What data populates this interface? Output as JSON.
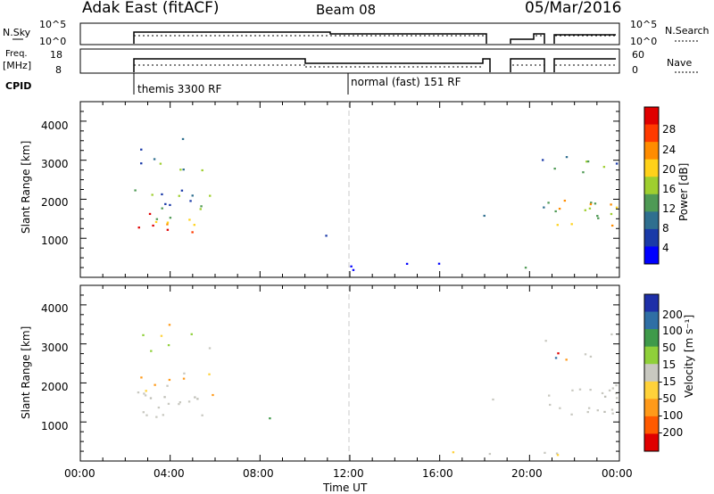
{
  "header": {
    "title": "Adak East (fitACF)",
    "beam": "Beam 08",
    "date": "05/Mar/2016"
  },
  "top_panels": {
    "nsky_label": "N.Sky",
    "nsky_ticks": [
      "10^5",
      "10^0"
    ],
    "nsearch_label": "N.Search",
    "nsearch_ticks": [
      "10^5",
      "10^0"
    ],
    "freq_label_1": "Freq.",
    "freq_label_2": "[MHz]",
    "freq_ticks": [
      "18",
      "8"
    ],
    "nave_label": "Nave",
    "nave_ticks": [
      "60",
      "0"
    ],
    "cpid_label": "CPID",
    "cpid_modes": [
      "themis 3300 RF",
      "normal (fast) 151 RF"
    ]
  },
  "chart_data": [
    {
      "type": "heatmap",
      "title": "",
      "ylabel": "Slant Range [km]",
      "xlabel": "",
      "yticks": [
        "1000",
        "2000",
        "3000",
        "4000"
      ],
      "ylim": [
        0,
        4500
      ],
      "xlim_hours": [
        0,
        24
      ],
      "colorbar_label": "Power [dB]",
      "colorbar_ticks": [
        "4",
        "8",
        "12",
        "16",
        "20",
        "24",
        "28"
      ],
      "colorbar_colors": [
        "#0000ff",
        "#1a3aa8",
        "#2f6f8f",
        "#4f9a55",
        "#9fcf2f",
        "#ffd21a",
        "#ff8c00",
        "#ff3a00",
        "#e00000"
      ]
    },
    {
      "type": "heatmap",
      "title": "",
      "ylabel": "Slant Range [km]",
      "xlabel": "Time UT",
      "yticks": [
        "1000",
        "2000",
        "3000",
        "4000"
      ],
      "ylim": [
        0,
        4500
      ],
      "xlim_hours": [
        0,
        24
      ],
      "colorbar_label": "Velocity [m s⁻¹]",
      "colorbar_ticks": [
        "200",
        "100",
        "50",
        "15",
        "-15",
        "-50",
        "-100",
        "-200"
      ],
      "colorbar_colors": [
        "#1e2fa8",
        "#2f6fa5",
        "#3f9a4a",
        "#8fd03a",
        "#c8c8c0",
        "#ffd23a",
        "#ff9a1a",
        "#ff5a00",
        "#e00000"
      ]
    }
  ],
  "x_axis": {
    "label": "Time UT",
    "ticks": [
      "00:00",
      "04:00",
      "08:00",
      "12:00",
      "16:00",
      "20:00",
      "00:00"
    ]
  }
}
